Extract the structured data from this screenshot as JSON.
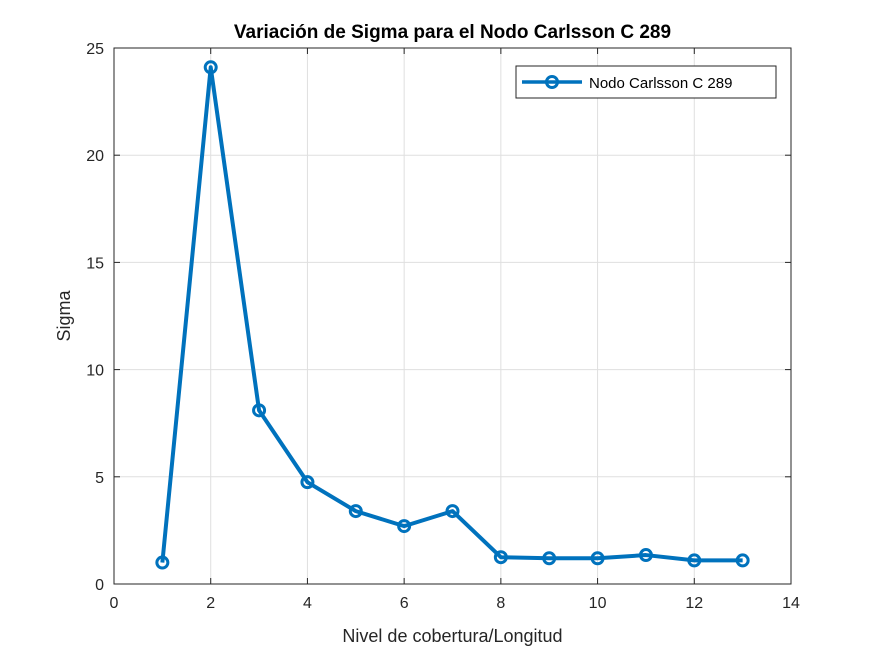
{
  "chart_data": {
    "type": "line",
    "title": "Variación de Sigma para el Nodo Carlsson C 289",
    "xlabel": "Nivel de cobertura/Longitud",
    "ylabel": "Sigma",
    "xlim": [
      0,
      14
    ],
    "ylim": [
      0,
      25
    ],
    "xticks": [
      "0",
      "2",
      "4",
      "6",
      "8",
      "10",
      "12",
      "14"
    ],
    "yticks": [
      "0",
      "5",
      "10",
      "15",
      "20",
      "25"
    ],
    "grid": true,
    "legend_position": "top-right",
    "series": [
      {
        "name": "Nodo Carlsson C 289",
        "color": "#0072BD",
        "marker": "circle",
        "x": [
          1,
          2,
          3,
          4,
          5,
          6,
          7,
          8,
          9,
          10,
          11,
          12,
          13
        ],
        "y": [
          1.0,
          24.1,
          8.1,
          4.75,
          3.4,
          2.7,
          3.4,
          1.25,
          1.2,
          1.2,
          1.35,
          1.1,
          1.1
        ]
      }
    ]
  }
}
